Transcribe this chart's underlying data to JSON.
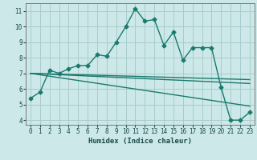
{
  "xlabel": "Humidex (Indice chaleur)",
  "bg_color": "#cce8e8",
  "grid_color": "#aacccc",
  "line_color": "#1a7a6e",
  "xlim": [
    -0.5,
    23.5
  ],
  "ylim": [
    3.7,
    11.5
  ],
  "xticks": [
    0,
    1,
    2,
    3,
    4,
    5,
    6,
    7,
    8,
    9,
    10,
    11,
    12,
    13,
    14,
    15,
    16,
    17,
    18,
    19,
    20,
    21,
    22,
    23
  ],
  "yticks": [
    4,
    5,
    6,
    7,
    8,
    9,
    10,
    11
  ],
  "line1_x": [
    0,
    1,
    2,
    3,
    4,
    5,
    6,
    7,
    8,
    9,
    10,
    11,
    12,
    13,
    14,
    15,
    16,
    17,
    18,
    19,
    20,
    21,
    22,
    23
  ],
  "line1_y": [
    5.4,
    5.8,
    7.2,
    7.0,
    7.3,
    7.5,
    7.5,
    8.2,
    8.1,
    9.0,
    10.0,
    11.15,
    10.35,
    10.45,
    8.8,
    9.65,
    7.85,
    8.65,
    8.65,
    8.65,
    6.1,
    4.0,
    4.0,
    4.5
  ],
  "line2_x": [
    0,
    23
  ],
  "line2_y": [
    7.0,
    6.6
  ],
  "line3_x": [
    0,
    23
  ],
  "line3_y": [
    7.0,
    6.35
  ],
  "line4_x": [
    0,
    23
  ],
  "line4_y": [
    7.0,
    4.9
  ],
  "marker": "D",
  "markersize": 2.5,
  "linewidth": 1.0
}
